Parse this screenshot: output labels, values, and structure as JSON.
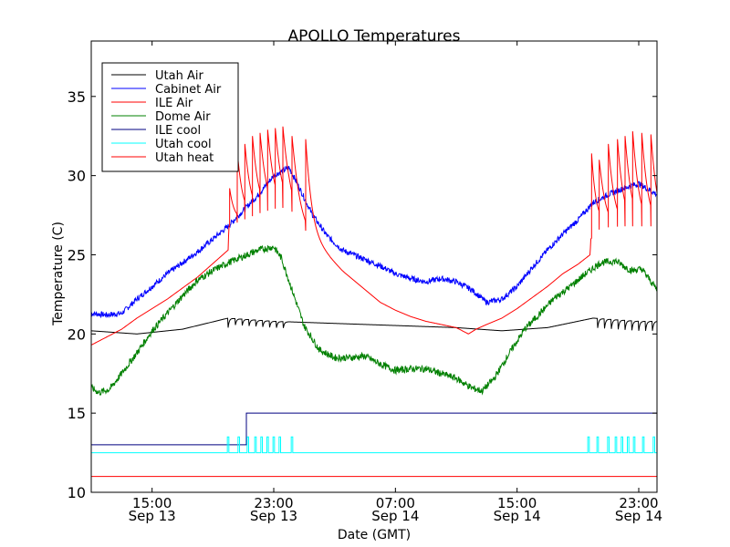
{
  "chart_data": {
    "type": "line",
    "title": "APOLLO Temperatures",
    "xlabel": "Date (GMT)",
    "ylabel": "Temperature (C)",
    "x_unit": "hours since Sep 13 11:00 GMT",
    "xlim": [
      0,
      37.2
    ],
    "ylim": [
      10,
      38.5
    ],
    "yticks": [
      10,
      15,
      20,
      25,
      30,
      35
    ],
    "xticks": [
      {
        "x": 4,
        "line1": "15:00",
        "line2": "Sep 13"
      },
      {
        "x": 12,
        "line1": "23:00",
        "line2": "Sep 13"
      },
      {
        "x": 20,
        "line1": "07:00",
        "line2": "Sep 14"
      },
      {
        "x": 28,
        "line1": "15:00",
        "line2": "Sep 14"
      },
      {
        "x": 36,
        "line1": "23:00",
        "line2": "Sep 14"
      }
    ],
    "grid": false,
    "legend_position": "top-left",
    "series": [
      {
        "name": "Utah Air",
        "color": "#000000",
        "points": [
          [
            0,
            20.2
          ],
          [
            3,
            20.0
          ],
          [
            6,
            20.3
          ],
          [
            9,
            21.0
          ],
          [
            12,
            20.8
          ],
          [
            15,
            20.7
          ],
          [
            18,
            20.6
          ],
          [
            21,
            20.5
          ],
          [
            24,
            20.4
          ],
          [
            27,
            20.2
          ],
          [
            30,
            20.4
          ],
          [
            33,
            21.0
          ],
          [
            36,
            20.8
          ],
          [
            37.2,
            20.8
          ]
        ],
        "dips": [
          [
            9,
            13
          ],
          [
            33.3,
            37.2
          ]
        ],
        "dip_spacing": 0.45,
        "dip_depth": 0.6
      },
      {
        "name": "Cabinet Air",
        "color": "#0000ff",
        "noise": 0.18,
        "points": [
          [
            0,
            21.3
          ],
          [
            1,
            21.2
          ],
          [
            2,
            21.3
          ],
          [
            3,
            22.2
          ],
          [
            5,
            23.8
          ],
          [
            7,
            25.2
          ],
          [
            9,
            26.8
          ],
          [
            10,
            27.8
          ],
          [
            11,
            28.8
          ],
          [
            12,
            30.0
          ],
          [
            13,
            30.5
          ],
          [
            13.5,
            29.6
          ],
          [
            14.5,
            27.6
          ],
          [
            15.5,
            26.2
          ],
          [
            16.5,
            25.3
          ],
          [
            18,
            24.7
          ],
          [
            19,
            24.3
          ],
          [
            20,
            23.8
          ],
          [
            21,
            23.5
          ],
          [
            22,
            23.3
          ],
          [
            23,
            23.5
          ],
          [
            24,
            23.3
          ],
          [
            25,
            22.8
          ],
          [
            26,
            22.0
          ],
          [
            27,
            22.2
          ],
          [
            28,
            23.0
          ],
          [
            29,
            24.2
          ],
          [
            30,
            25.3
          ],
          [
            31,
            26.3
          ],
          [
            32,
            27.2
          ],
          [
            33,
            28.3
          ],
          [
            34,
            28.8
          ],
          [
            35,
            29.2
          ],
          [
            36,
            29.5
          ],
          [
            37.2,
            28.8
          ]
        ]
      },
      {
        "name": "ILE Air",
        "color": "#ff0000",
        "points": [
          [
            0,
            19.3
          ],
          [
            1,
            19.8
          ],
          [
            2,
            20.3
          ],
          [
            3,
            21.0
          ],
          [
            5,
            22.2
          ],
          [
            7,
            23.6
          ],
          [
            9,
            25.3
          ],
          [
            9.05,
            26.8
          ],
          [
            10,
            27.2
          ],
          [
            11,
            27.6
          ],
          [
            12,
            27.9
          ],
          [
            13,
            28.0
          ],
          [
            13.5,
            27.3
          ],
          [
            14.5,
            26.0
          ],
          [
            15.5,
            25.0
          ],
          [
            16.5,
            24.0
          ],
          [
            18,
            22.8
          ],
          [
            19,
            22.0
          ],
          [
            20,
            21.5
          ],
          [
            21,
            21.1
          ],
          [
            22,
            20.8
          ],
          [
            23,
            20.6
          ],
          [
            24,
            20.4
          ],
          [
            24.8,
            20.0
          ],
          [
            25.3,
            20.3
          ],
          [
            26,
            20.6
          ],
          [
            27,
            21.0
          ],
          [
            28,
            21.6
          ],
          [
            29,
            22.3
          ],
          [
            30,
            23.0
          ],
          [
            31,
            23.8
          ],
          [
            32,
            24.4
          ],
          [
            32.8,
            25.0
          ],
          [
            32.85,
            26.0
          ],
          [
            33.5,
            26.7
          ],
          [
            35,
            26.8
          ],
          [
            37.2,
            26.8
          ]
        ],
        "spikes": [
          {
            "x": 9.1,
            "peak": 29.2
          },
          {
            "x": 9.6,
            "peak": 31.6
          },
          {
            "x": 10.1,
            "peak": 32.0
          },
          {
            "x": 10.6,
            "peak": 32.5
          },
          {
            "x": 11.1,
            "peak": 32.7
          },
          {
            "x": 11.6,
            "peak": 32.9
          },
          {
            "x": 12.1,
            "peak": 33.0
          },
          {
            "x": 12.6,
            "peak": 33.1
          },
          {
            "x": 13.2,
            "peak": 32.5
          },
          {
            "x": 14.1,
            "peak": 32.3
          },
          {
            "x": 32.9,
            "peak": 31.4
          },
          {
            "x": 33.4,
            "peak": 31.0
          },
          {
            "x": 34.0,
            "peak": 32.0
          },
          {
            "x": 34.6,
            "peak": 32.3
          },
          {
            "x": 35.1,
            "peak": 32.5
          },
          {
            "x": 35.6,
            "peak": 32.8
          },
          {
            "x": 36.2,
            "peak": 32.7
          },
          {
            "x": 36.8,
            "peak": 32.6
          }
        ],
        "spike_decay": 0.35
      },
      {
        "name": "Dome Air",
        "color": "#008000",
        "noise": 0.22,
        "points": [
          [
            0,
            16.6
          ],
          [
            0.5,
            16.3
          ],
          [
            1.2,
            16.5
          ],
          [
            2,
            17.5
          ],
          [
            3,
            18.8
          ],
          [
            4,
            20.2
          ],
          [
            5,
            21.3
          ],
          [
            6,
            22.4
          ],
          [
            7,
            23.4
          ],
          [
            8,
            24.0
          ],
          [
            9,
            24.5
          ],
          [
            10,
            24.9
          ],
          [
            11,
            25.3
          ],
          [
            12,
            25.5
          ],
          [
            12.5,
            24.8
          ],
          [
            13.3,
            22.5
          ],
          [
            14,
            20.5
          ],
          [
            15,
            19.0
          ],
          [
            16,
            18.5
          ],
          [
            17,
            18.5
          ],
          [
            18,
            18.6
          ],
          [
            19,
            18.1
          ],
          [
            20,
            17.7
          ],
          [
            21,
            17.8
          ],
          [
            22,
            17.8
          ],
          [
            23,
            17.5
          ],
          [
            24,
            17.2
          ],
          [
            25,
            16.6
          ],
          [
            25.7,
            16.4
          ],
          [
            26.5,
            17.2
          ],
          [
            27.5,
            18.8
          ],
          [
            28.5,
            20.3
          ],
          [
            29.5,
            21.3
          ],
          [
            30.5,
            22.3
          ],
          [
            31.5,
            23.0
          ],
          [
            32.5,
            23.8
          ],
          [
            33.5,
            24.5
          ],
          [
            34.5,
            24.6
          ],
          [
            35.5,
            24.0
          ],
          [
            36.2,
            24.1
          ],
          [
            37.2,
            22.8
          ]
        ]
      },
      {
        "name": "ILE cool",
        "color": "#000080",
        "step": true,
        "points": [
          [
            0,
            13.0
          ],
          [
            10.2,
            13.0
          ],
          [
            10.2,
            15.0
          ],
          [
            37.2,
            15.0
          ]
        ]
      },
      {
        "name": "Utah cool",
        "color": "#00ffff",
        "points": [
          [
            0,
            12.5
          ],
          [
            37.2,
            12.5
          ]
        ],
        "pulses": [
          9.0,
          9.7,
          10.3,
          10.8,
          11.2,
          11.6,
          12.0,
          12.4,
          13.2,
          32.7,
          33.3,
          34.0,
          34.5,
          34.9,
          35.3,
          35.7,
          36.3,
          37.0
        ],
        "pulse_top": 13.5
      },
      {
        "name": "Utah heat",
        "color": "#ff0000",
        "points": [
          [
            0,
            11.0
          ],
          [
            37.2,
            11.0
          ]
        ]
      }
    ]
  }
}
